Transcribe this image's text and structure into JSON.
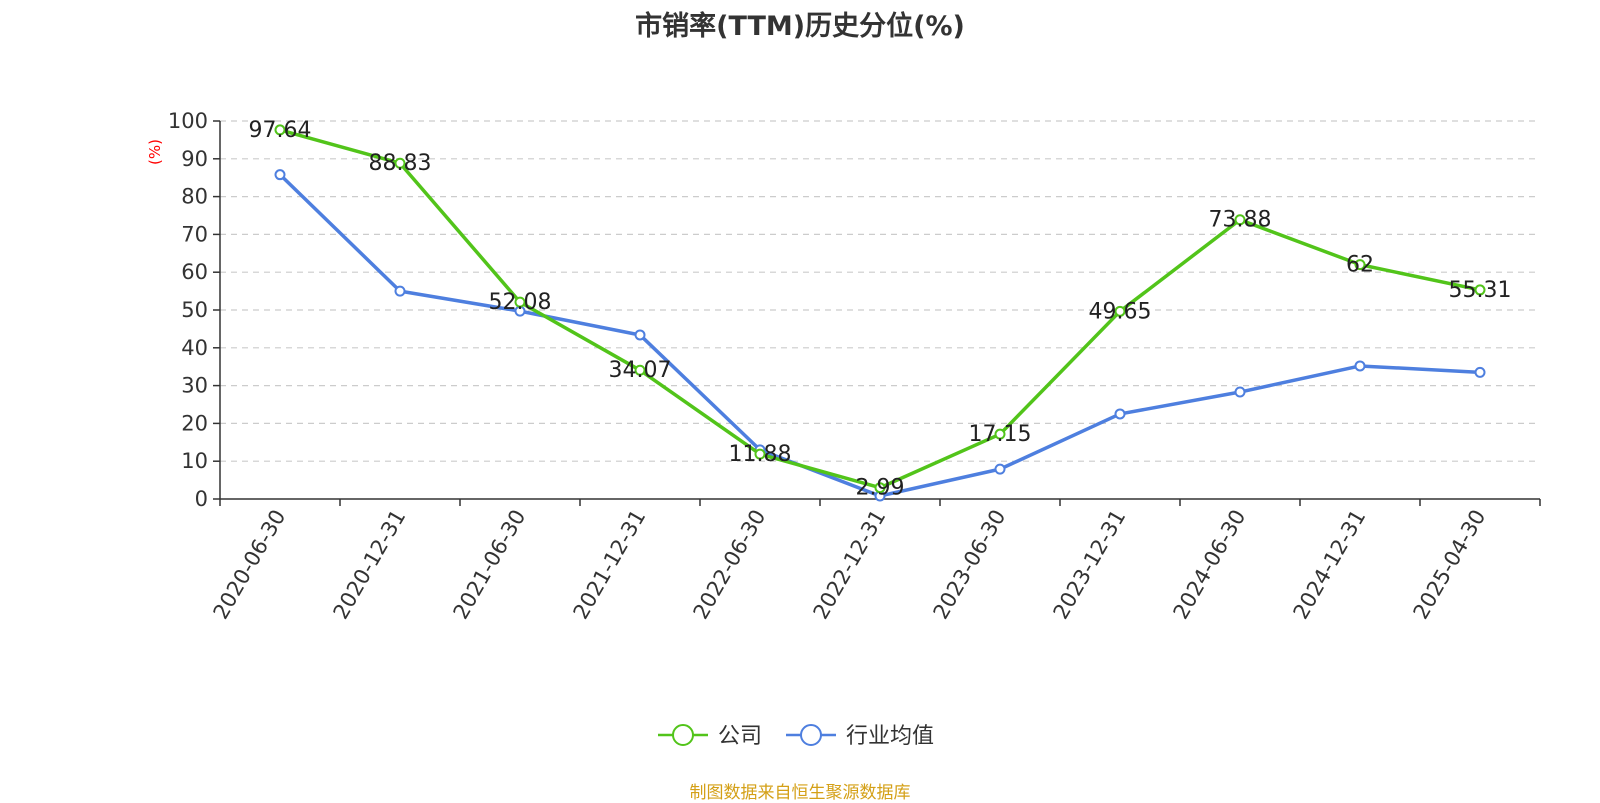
{
  "chart_data": {
    "type": "line",
    "title": "市销率(TTM)历史分位(%)",
    "ylabel": "(%)",
    "xlabel": "",
    "ylim": [
      0,
      100
    ],
    "yticks": [
      0,
      10,
      20,
      30,
      40,
      50,
      60,
      70,
      80,
      90,
      100
    ],
    "grid": true,
    "legend_position": "bottom",
    "categories": [
      "2020-06-30",
      "2020-12-31",
      "2021-06-30",
      "2021-12-31",
      "2022-06-30",
      "2022-12-31",
      "2023-06-30",
      "2023-12-31",
      "2024-06-30",
      "2024-12-31",
      "2025-04-30"
    ],
    "series": [
      {
        "name": "公司",
        "color": "#52c41a",
        "values": [
          97.64,
          88.83,
          52.08,
          34.07,
          11.88,
          2.99,
          17.15,
          49.65,
          73.88,
          62,
          55.31
        ],
        "labels": [
          "97.64",
          "88.83",
          "52.08",
          "34.07",
          "11.88",
          "2.99",
          "17.15",
          "49.65",
          "73.88",
          "62",
          "55.31"
        ]
      },
      {
        "name": "行业均值",
        "color": "#4e7fdf",
        "values": [
          85.8,
          55.0,
          49.7,
          43.4,
          13.0,
          0.8,
          7.9,
          22.5,
          28.3,
          35.2,
          33.5
        ]
      }
    ]
  },
  "source": "制图数据来自恒生聚源数据库"
}
